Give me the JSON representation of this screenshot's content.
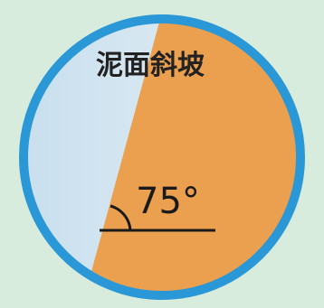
{
  "diagram": {
    "label": "泥面斜坡",
    "angle_label": "75°",
    "angle_degrees": 75
  },
  "colors": {
    "background": "#d8ecde",
    "ring": "#2a97d6",
    "sky": "#d3e6f1",
    "slope": "#eba04f",
    "line": "#1a1a1a"
  }
}
